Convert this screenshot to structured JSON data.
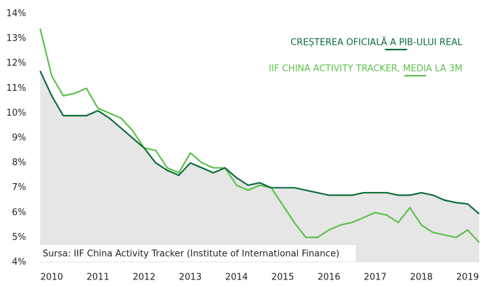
{
  "chart_data": {
    "type": "line",
    "source": "Sursa: IIF China Activity Tracker (Institute of International Finance)",
    "x": [
      2009.75,
      2010,
      2010.25,
      2010.5,
      2010.75,
      2011,
      2011.25,
      2011.5,
      2011.75,
      2012,
      2012.25,
      2012.5,
      2012.75,
      2013,
      2013.25,
      2013.5,
      2013.75,
      2014,
      2014.25,
      2014.5,
      2014.75,
      2015,
      2015.25,
      2015.5,
      2015.75,
      2016,
      2016.25,
      2016.5,
      2016.75,
      2017,
      2017.25,
      2017.5,
      2017.75,
      2018,
      2018.25,
      2018.5,
      2018.75,
      2019,
      2019.25
    ],
    "series": [
      {
        "name": "CREȘTEREA OFICIALĂ A PIB-ULUI REAL",
        "color": "#0b6b3a",
        "area_color": "#e6e6e6",
        "values": [
          11.7,
          10.7,
          9.9,
          9.9,
          9.9,
          10.1,
          9.8,
          9.4,
          9.0,
          8.6,
          8.0,
          7.7,
          7.5,
          8.0,
          7.8,
          7.6,
          7.8,
          7.4,
          7.1,
          7.2,
          7.0,
          7.0,
          7.0,
          6.9,
          6.8,
          6.7,
          6.7,
          6.7,
          6.8,
          6.8,
          6.8,
          6.7,
          6.7,
          6.8,
          6.7,
          6.5,
          6.4,
          6.35,
          5.95
        ]
      },
      {
        "name": "IIF CHINA ACTIVITY TRACKER, MEDIA LA 3M",
        "color": "#5cbf4a",
        "values": [
          13.4,
          11.5,
          10.7,
          10.8,
          11.0,
          10.2,
          10.0,
          9.8,
          9.3,
          8.6,
          8.5,
          7.8,
          7.6,
          8.4,
          8.0,
          7.8,
          7.8,
          7.1,
          6.9,
          7.1,
          7.0,
          6.3,
          5.6,
          5.0,
          5.0,
          5.3,
          5.5,
          5.6,
          5.8,
          6.0,
          5.9,
          5.6,
          6.2,
          5.5,
          5.2,
          5.1,
          5.0,
          5.3,
          4.8
        ]
      }
    ],
    "xlim": [
      2009.7,
      2019.29
    ],
    "xticks": [
      2010,
      2011,
      2012,
      2013,
      2014,
      2015,
      2016,
      2017,
      2018,
      2019
    ],
    "ylim": [
      4,
      14
    ],
    "yticks": [
      {
        "value": 4,
        "label": "4%"
      },
      {
        "value": 5,
        "label": "5%"
      },
      {
        "value": 6,
        "label": "6%"
      },
      {
        "value": 7,
        "label": "7%"
      },
      {
        "value": 8,
        "label": "8%"
      },
      {
        "value": 9,
        "label": "9%"
      },
      {
        "value": 10,
        "label": "10%"
      },
      {
        "value": 11,
        "label": "11%"
      },
      {
        "value": 12,
        "label": "12%"
      },
      {
        "value": 13,
        "label": "13%"
      },
      {
        "value": 14,
        "label": "14%"
      }
    ],
    "legend": "upper right",
    "grid": false
  }
}
